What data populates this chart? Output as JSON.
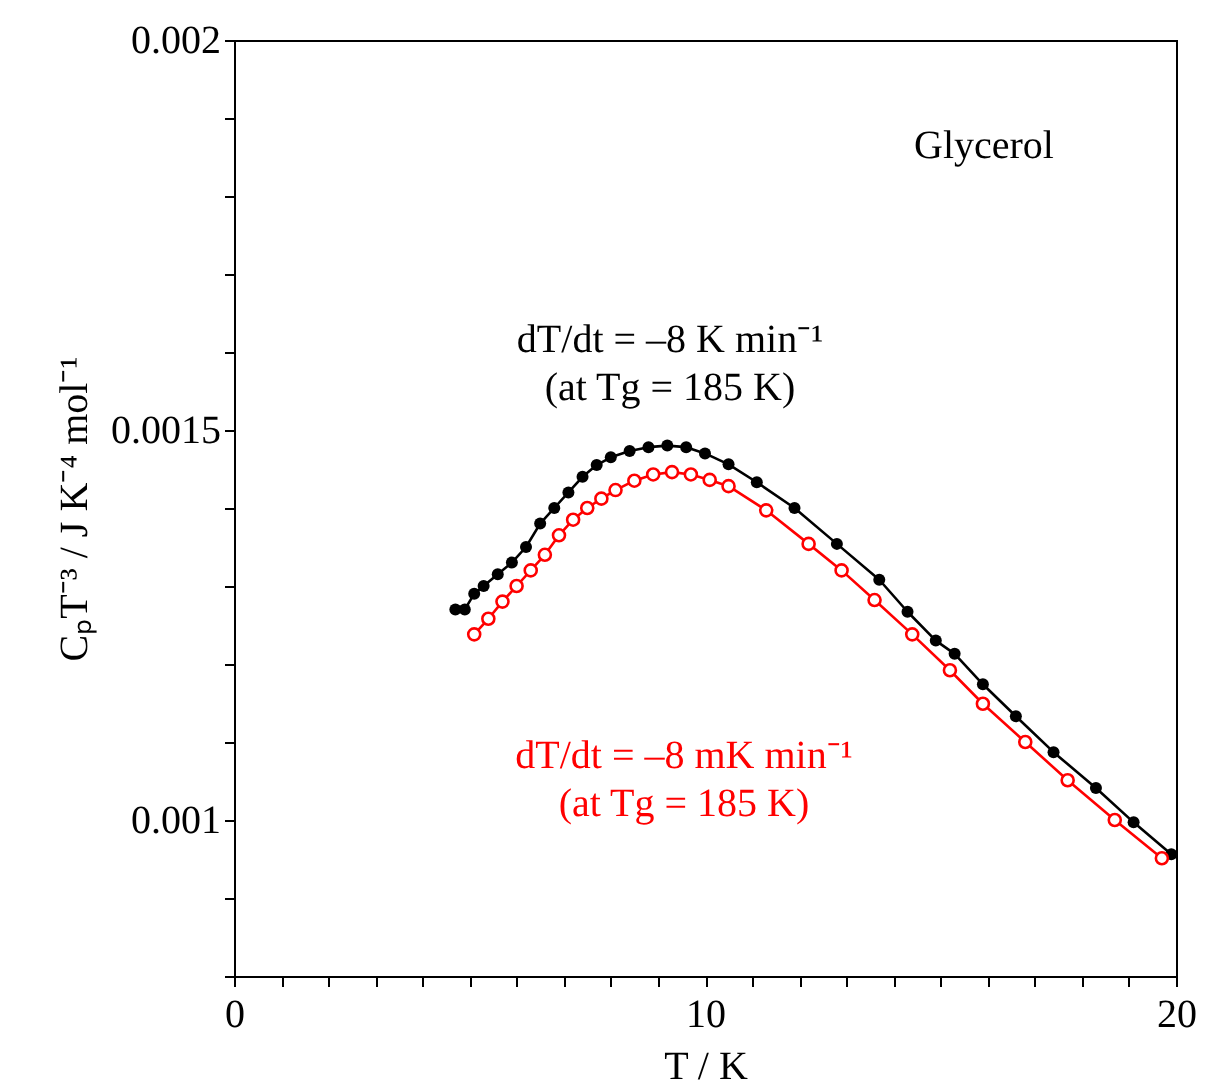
{
  "chart_data": {
    "type": "line",
    "xlabel": "T / K",
    "ylabel": "CₚT⁻³ / J K⁻⁴ mol⁻¹",
    "xlim": [
      0,
      20
    ],
    "ylim": [
      0.0008,
      0.002
    ],
    "xticks": [
      0,
      {
        "value": 1,
        "label": null
      },
      {
        "value": 2,
        "label": null
      },
      {
        "value": 3,
        "label": null
      },
      {
        "value": 4,
        "label": null
      },
      {
        "value": 5,
        "label": null
      },
      {
        "value": 6,
        "label": null
      },
      {
        "value": 7,
        "label": null
      },
      {
        "value": 8,
        "label": null
      },
      {
        "value": 9,
        "label": null
      },
      10,
      {
        "value": 11,
        "label": null
      },
      {
        "value": 12,
        "label": null
      },
      {
        "value": 13,
        "label": null
      },
      {
        "value": 14,
        "label": null
      },
      {
        "value": 15,
        "label": null
      },
      {
        "value": 16,
        "label": null
      },
      {
        "value": 17,
        "label": null
      },
      {
        "value": 18,
        "label": null
      },
      {
        "value": 19,
        "label": null
      },
      20
    ],
    "yticks": [
      {
        "value": 0.0008,
        "label": null
      },
      {
        "value": 0.0009,
        "label": null
      },
      0.001,
      {
        "value": 0.0011,
        "label": null
      },
      {
        "value": 0.0012,
        "label": null
      },
      {
        "value": 0.0013,
        "label": null
      },
      {
        "value": 0.0014,
        "label": null
      },
      0.0015,
      {
        "value": 0.0016,
        "label": null
      },
      {
        "value": 0.0017,
        "label": null
      },
      {
        "value": 0.0018,
        "label": null
      },
      {
        "value": 0.0019,
        "label": null
      },
      0.002
    ],
    "grid": false,
    "marker": "circle",
    "line_style": "solid",
    "annotations": [
      "Glycerol"
    ],
    "series": [
      {
        "name": "dT/dt = –8 K min⁻¹\n(at Tg = 185 K)",
        "color": "#000000",
        "x": [
          4.7,
          4.9,
          5.1,
          5.3,
          5.6,
          5.9,
          6.2,
          6.5,
          6.8,
          7.1,
          7.4,
          7.7,
          8.0,
          8.4,
          8.8,
          9.2,
          9.6,
          10.0,
          10.5,
          11.1,
          11.9,
          12.8,
          13.7,
          14.3,
          14.9,
          15.3,
          15.9,
          16.6,
          17.4,
          18.3,
          19.1,
          19.9
        ],
        "values": [
          0.00127,
          0.00127,
          0.00129,
          0.0013,
          0.001315,
          0.00133,
          0.00135,
          0.00138,
          0.0014,
          0.00142,
          0.00144,
          0.001455,
          0.001465,
          0.001473,
          0.001478,
          0.00148,
          0.001478,
          0.00147,
          0.001456,
          0.001433,
          0.0014,
          0.001354,
          0.001308,
          0.001267,
          0.00123,
          0.001213,
          0.001174,
          0.001133,
          0.001087,
          0.001041,
          0.000997,
          0.000956
        ]
      },
      {
        "name": "dT/dt = –8 mK min⁻¹\n(at Tg = 185 K)",
        "color": "#ff0000",
        "x": [
          5.1,
          5.4,
          5.7,
          6.0,
          6.3,
          6.6,
          6.9,
          7.2,
          7.5,
          7.8,
          8.1,
          8.5,
          8.9,
          9.3,
          9.7,
          10.1,
          10.5,
          11.3,
          12.2,
          12.9,
          13.6,
          14.4,
          15.2,
          15.9,
          16.8,
          17.7,
          18.7,
          19.7
        ],
        "values": [
          0.001238,
          0.001258,
          0.00128,
          0.0013,
          0.00132,
          0.00134,
          0.001365,
          0.001385,
          0.0014,
          0.001412,
          0.001423,
          0.001435,
          0.001443,
          0.001446,
          0.001443,
          0.001436,
          0.001428,
          0.001397,
          0.001354,
          0.00132,
          0.001282,
          0.001238,
          0.001192,
          0.001149,
          0.0011,
          0.001051,
          0.001,
          0.000951
        ]
      }
    ]
  }
}
